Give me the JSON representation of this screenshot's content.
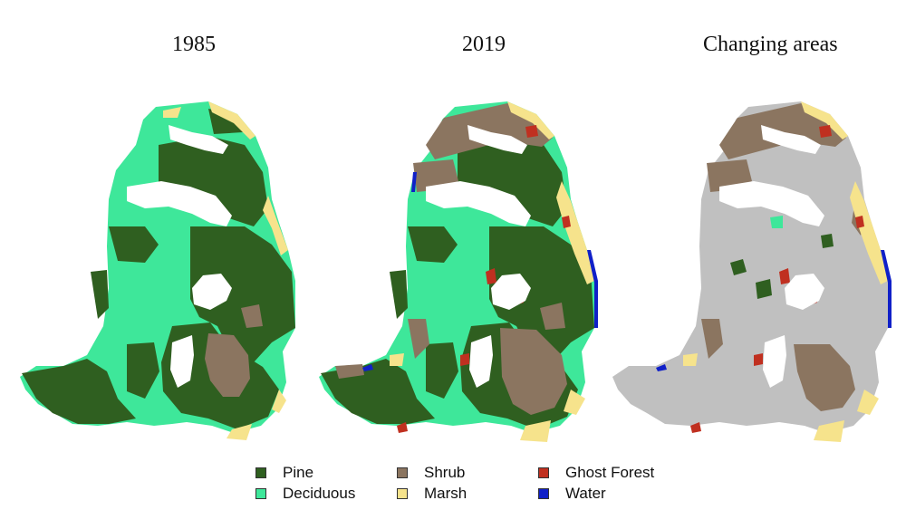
{
  "titles": {
    "map1": "1985",
    "map2": "2019",
    "map3": "Changing areas"
  },
  "legend": [
    {
      "label": "Pine",
      "color": "#2f5f20"
    },
    {
      "label": "Deciduous",
      "color": "#3ee79a"
    },
    {
      "label": "Shrub",
      "color": "#8b7560"
    },
    {
      "label": "Marsh",
      "color": "#f6e38c"
    },
    {
      "label": "Ghost Forest",
      "color": "#c03020"
    },
    {
      "label": "Water",
      "color": "#1020c8"
    }
  ],
  "colors": {
    "pine": "#2f5f20",
    "deciduous": "#3ee79a",
    "shrub": "#8b7560",
    "marsh": "#f6e38c",
    "ghost": "#c03020",
    "water": "#1020c8",
    "unchanged": "#c0c0c0"
  }
}
